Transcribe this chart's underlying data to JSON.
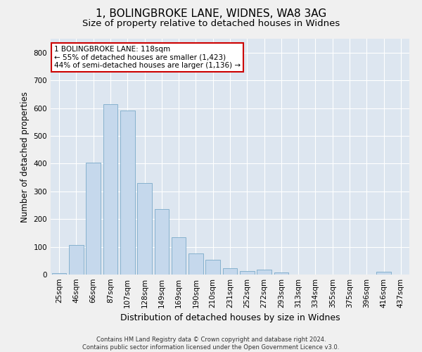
{
  "title1": "1, BOLINGBROKE LANE, WIDNES, WA8 3AG",
  "title2": "Size of property relative to detached houses in Widnes",
  "xlabel": "Distribution of detached houses by size in Widnes",
  "ylabel": "Number of detached properties",
  "categories": [
    "25sqm",
    "46sqm",
    "66sqm",
    "87sqm",
    "107sqm",
    "128sqm",
    "149sqm",
    "169sqm",
    "190sqm",
    "210sqm",
    "231sqm",
    "252sqm",
    "272sqm",
    "293sqm",
    "313sqm",
    "334sqm",
    "355sqm",
    "375sqm",
    "396sqm",
    "416sqm",
    "437sqm"
  ],
  "values": [
    5,
    106,
    403,
    614,
    591,
    330,
    237,
    135,
    77,
    53,
    24,
    13,
    17,
    7,
    0,
    0,
    0,
    0,
    0,
    9,
    0
  ],
  "bar_color": "#c5d8ec",
  "bar_edge_color": "#7aaac8",
  "annotation_text": "1 BOLINGBROKE LANE: 118sqm\n← 55% of detached houses are smaller (1,423)\n44% of semi-detached houses are larger (1,136) →",
  "annotation_box_color": "#ffffff",
  "annotation_box_edge": "#cc0000",
  "ylim": [
    0,
    850
  ],
  "yticks": [
    0,
    100,
    200,
    300,
    400,
    500,
    600,
    700,
    800
  ],
  "background_color": "#dde6f0",
  "figure_color": "#f0f0f0",
  "footnote": "Contains HM Land Registry data © Crown copyright and database right 2024.\nContains public sector information licensed under the Open Government Licence v3.0.",
  "title1_fontsize": 11,
  "title2_fontsize": 9.5,
  "xlabel_fontsize": 9,
  "ylabel_fontsize": 8.5,
  "tick_fontsize": 7.5,
  "annot_fontsize": 7.5,
  "footnote_fontsize": 6
}
